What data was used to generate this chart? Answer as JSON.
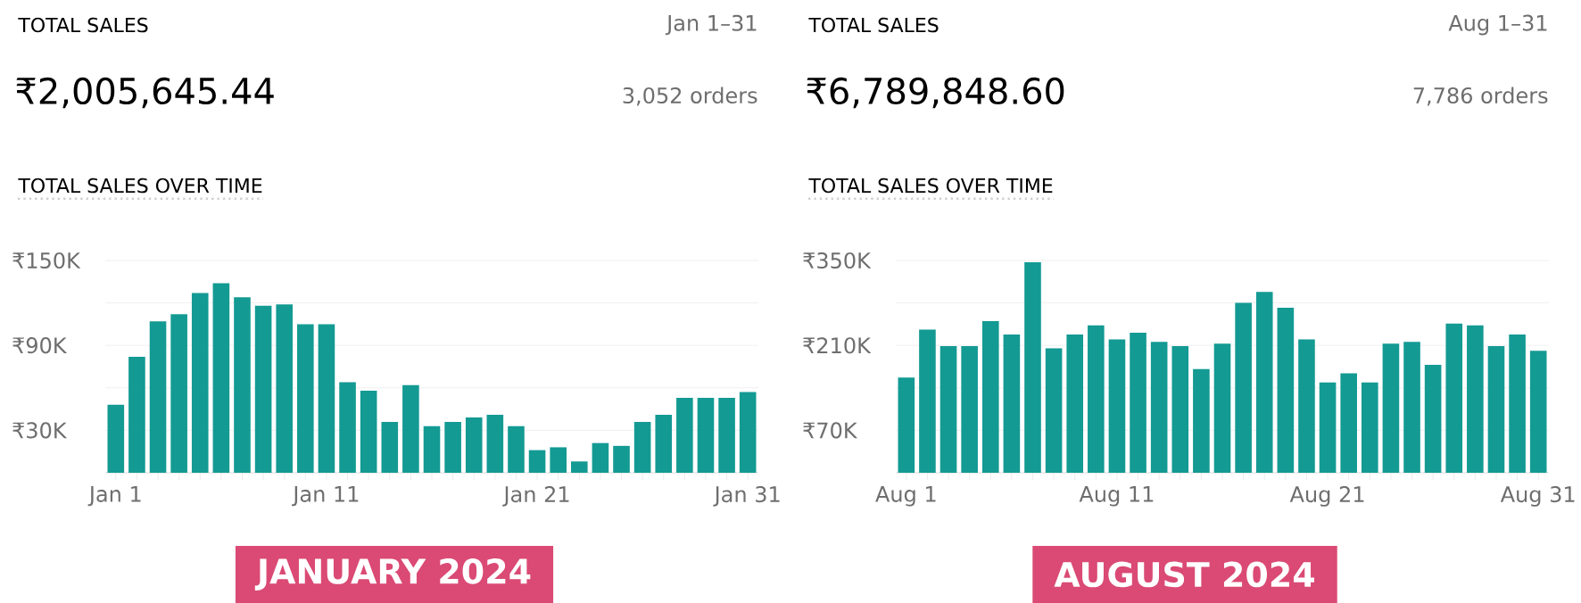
{
  "chart_data": [
    {
      "type": "bar",
      "title": "TOTAL SALES OVER TIME",
      "annotations": [
        "TOTAL SALES",
        "Jan 1–31",
        "₹2,005,645.44",
        "3,052 orders",
        "JANUARY 2024"
      ],
      "categories": [
        "Jan 1",
        null,
        null,
        null,
        null,
        null,
        null,
        null,
        null,
        null,
        "Jan 11",
        null,
        null,
        null,
        null,
        null,
        null,
        null,
        null,
        null,
        "Jan 21",
        null,
        null,
        null,
        null,
        null,
        null,
        null,
        null,
        null,
        "Jan 31"
      ],
      "values": [
        48,
        82,
        107,
        112,
        127,
        134,
        124,
        118,
        119,
        105,
        105,
        64,
        58,
        36,
        62,
        33,
        36,
        39,
        41,
        33,
        16,
        18,
        8,
        21,
        19,
        36,
        41,
        53,
        53,
        53,
        57
      ],
      "color": "#139a93",
      "ylim": [
        0,
        150
      ],
      "yticks": [
        {
          "value": 30,
          "label": "₹30K"
        },
        {
          "value": 60,
          "label": null
        },
        {
          "value": 90,
          "label": "₹90K"
        },
        {
          "value": 120,
          "label": null
        },
        {
          "value": 150,
          "label": "₹150K"
        }
      ],
      "grid": "y"
    },
    {
      "type": "bar",
      "title": "TOTAL SALES OVER TIME",
      "annotations": [
        "TOTAL SALES",
        "Aug 1–31",
        "₹6,789,848.60",
        "7,786 orders",
        "AUGUST 2024"
      ],
      "categories": [
        "Aug 1",
        null,
        null,
        null,
        null,
        null,
        null,
        null,
        null,
        null,
        "Aug 11",
        null,
        null,
        null,
        null,
        null,
        null,
        null,
        null,
        null,
        "Aug 21",
        null,
        null,
        null,
        null,
        null,
        null,
        null,
        null,
        null,
        "Aug 31"
      ],
      "values": [
        157,
        236,
        209,
        209,
        250,
        228,
        347,
        205,
        228,
        243,
        220,
        231,
        216,
        209,
        171,
        213,
        280,
        298,
        272,
        220,
        149,
        164,
        149,
        213,
        216,
        178,
        246,
        243,
        209,
        228,
        201
      ],
      "color": "#139a93",
      "ylim": [
        0,
        350
      ],
      "yticks": [
        {
          "value": 70,
          "label": "₹70K"
        },
        {
          "value": 140,
          "label": null
        },
        {
          "value": 210,
          "label": "₹210K"
        },
        {
          "value": 280,
          "label": null
        },
        {
          "value": 350,
          "label": "₹350K"
        }
      ],
      "grid": "y"
    }
  ]
}
